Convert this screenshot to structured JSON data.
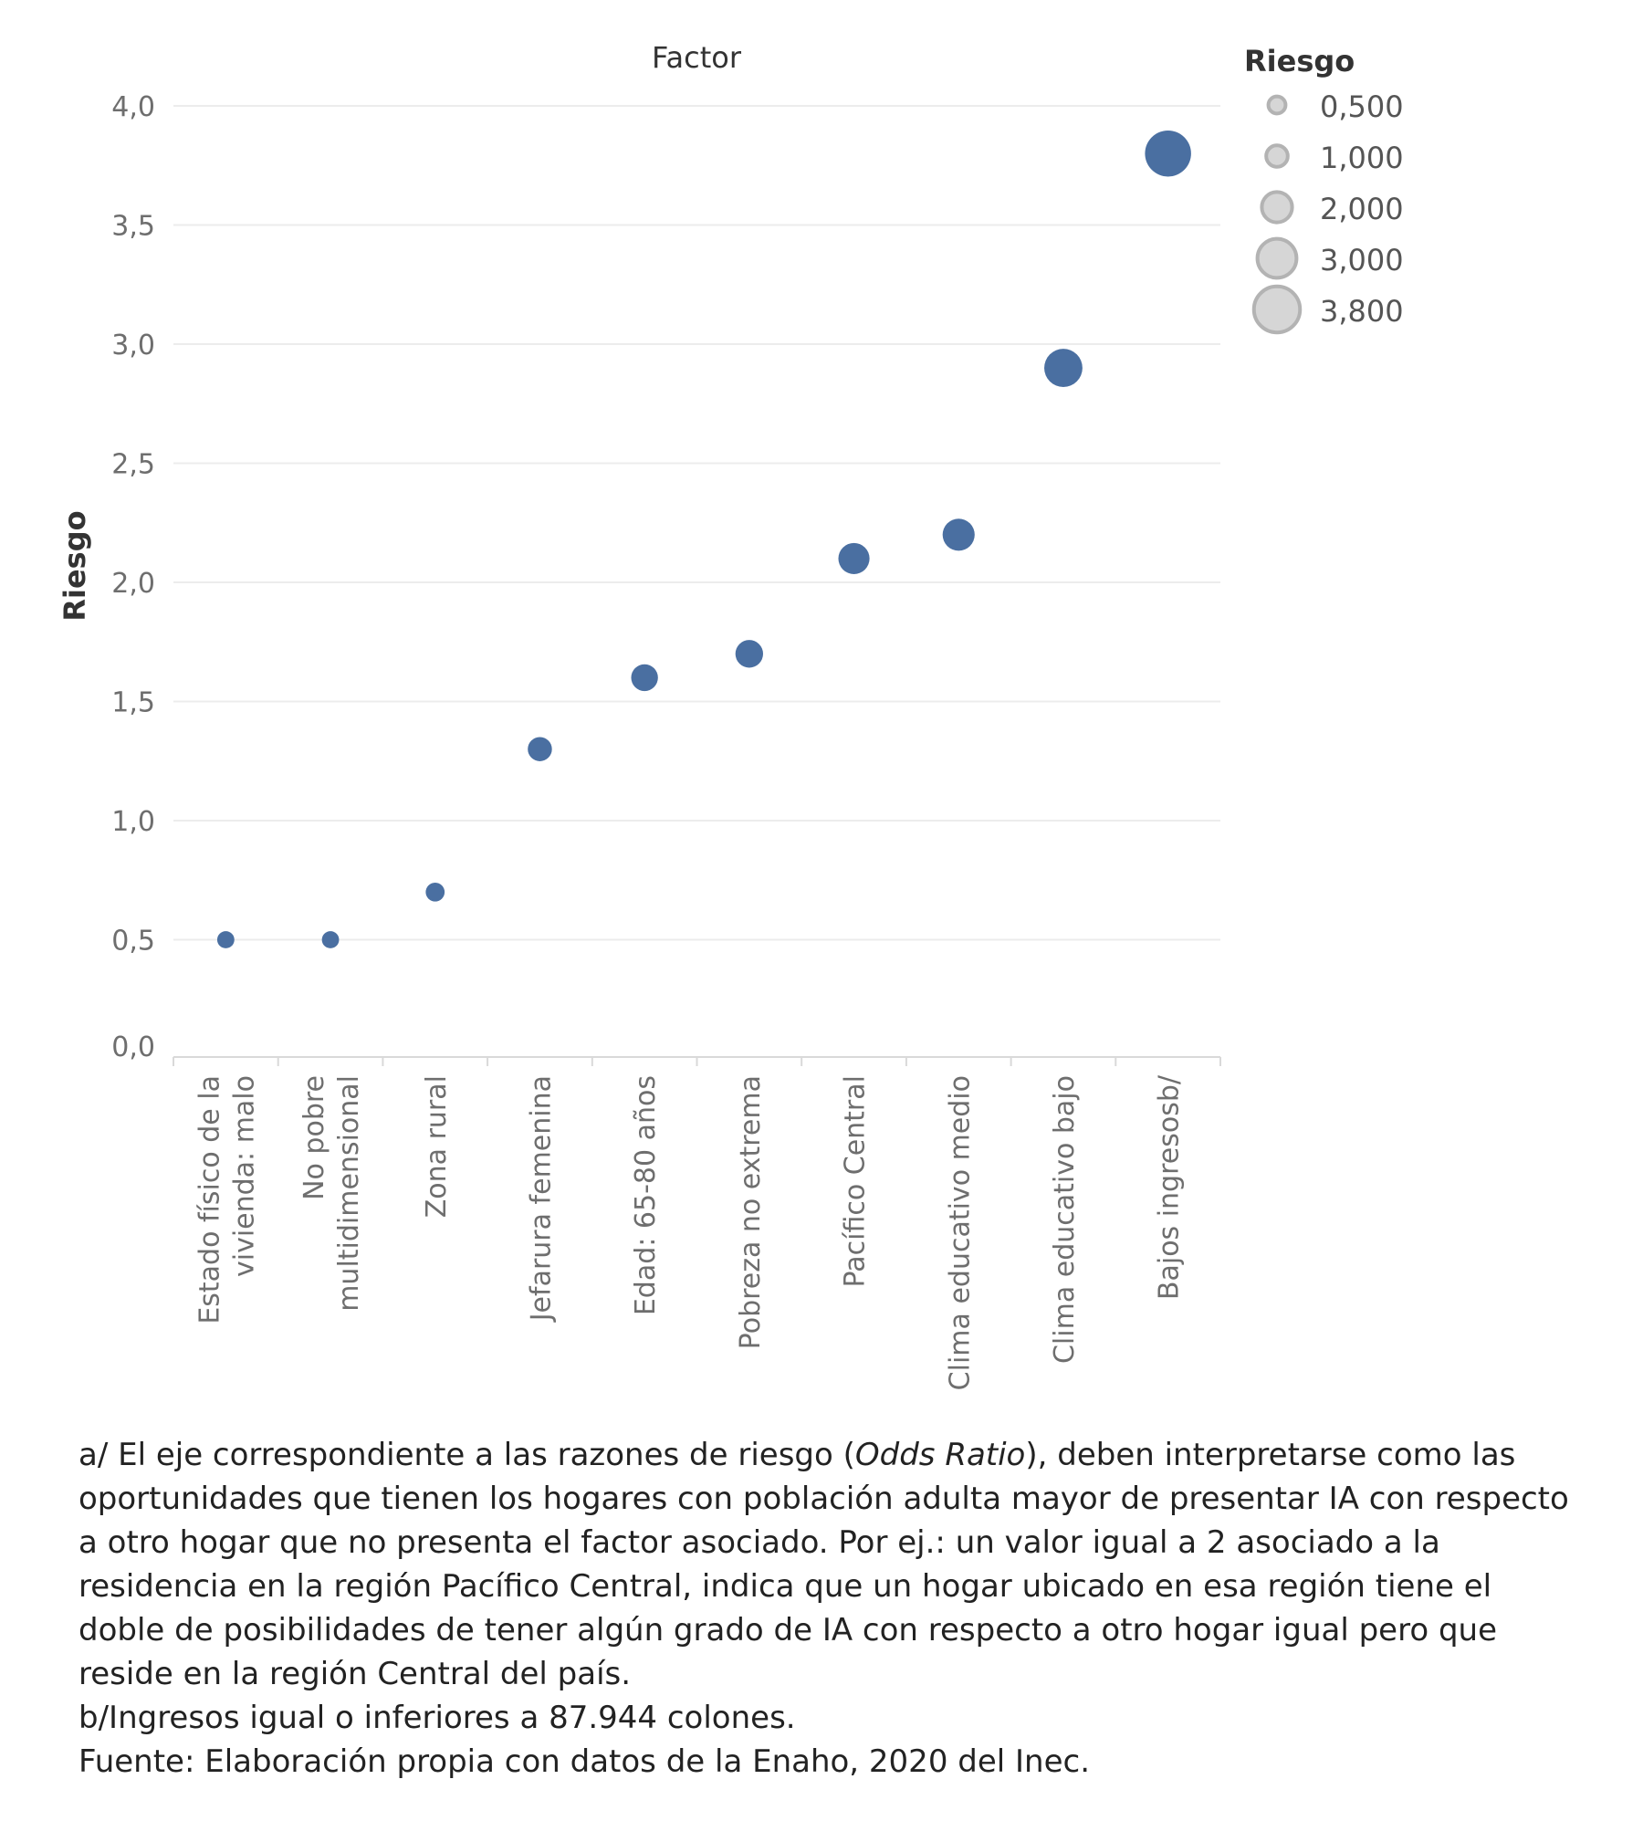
{
  "chart_data": {
    "type": "scatter",
    "column_title": "Factor",
    "ylabel": "Riesgo",
    "ylim": [
      0,
      4
    ],
    "yticks": [
      "0,0",
      "0,5",
      "1,0",
      "1,5",
      "2,0",
      "2,5",
      "3,0",
      "3,5",
      "4,0"
    ],
    "grid": true,
    "categories": [
      [
        "Estado físico de la",
        "vivienda: malo"
      ],
      [
        "No pobre",
        "multidimensional"
      ],
      [
        "Zona rural"
      ],
      [
        "Jefarura femenina"
      ],
      [
        "Edad: 65-80 años"
      ],
      [
        "Pobreza no extrema"
      ],
      [
        "Pacífico Central"
      ],
      [
        "Clima educativo medio"
      ],
      [
        "Clima educativo bajo"
      ],
      [
        "Bajos ingresosb/"
      ]
    ],
    "values": [
      0.5,
      0.5,
      0.7,
      1.3,
      1.6,
      1.7,
      2.1,
      2.2,
      2.9,
      3.8
    ],
    "size_encodes": "Riesgo",
    "color": "#4a6fa1",
    "legend": {
      "title": "Riesgo",
      "position": "top-right",
      "items": [
        {
          "label": "0,500",
          "value": 0.5
        },
        {
          "label": "1,000",
          "value": 1.0
        },
        {
          "label": "2,000",
          "value": 2.0
        },
        {
          "label": "3,000",
          "value": 3.0
        },
        {
          "label": "3,800",
          "value": 3.8
        }
      ]
    }
  },
  "notes": {
    "a_prefix": "a/ El eje correspondiente a las razones de riesgo (",
    "a_italic": "Odds Ratio",
    "a_suffix": "), deben interpretarse como las oportunidades que tienen los hogares con población adulta mayor de presentar IA con respecto a otro hogar que no presenta el factor asociado. Por ej.: un valor igual a 2 asociado a la residencia en la región Pacífico Central, indica que un hogar ubicado en esa región tiene el doble de posibilidades de tener algún grado de IA con respecto a otro hogar igual pero que reside en la región Central del país.",
    "b": "b/Ingresos igual o inferiores a 87.944 colones.",
    "source": "Fuente: Elaboración propia con datos de la Enaho, 2020 del Inec."
  }
}
